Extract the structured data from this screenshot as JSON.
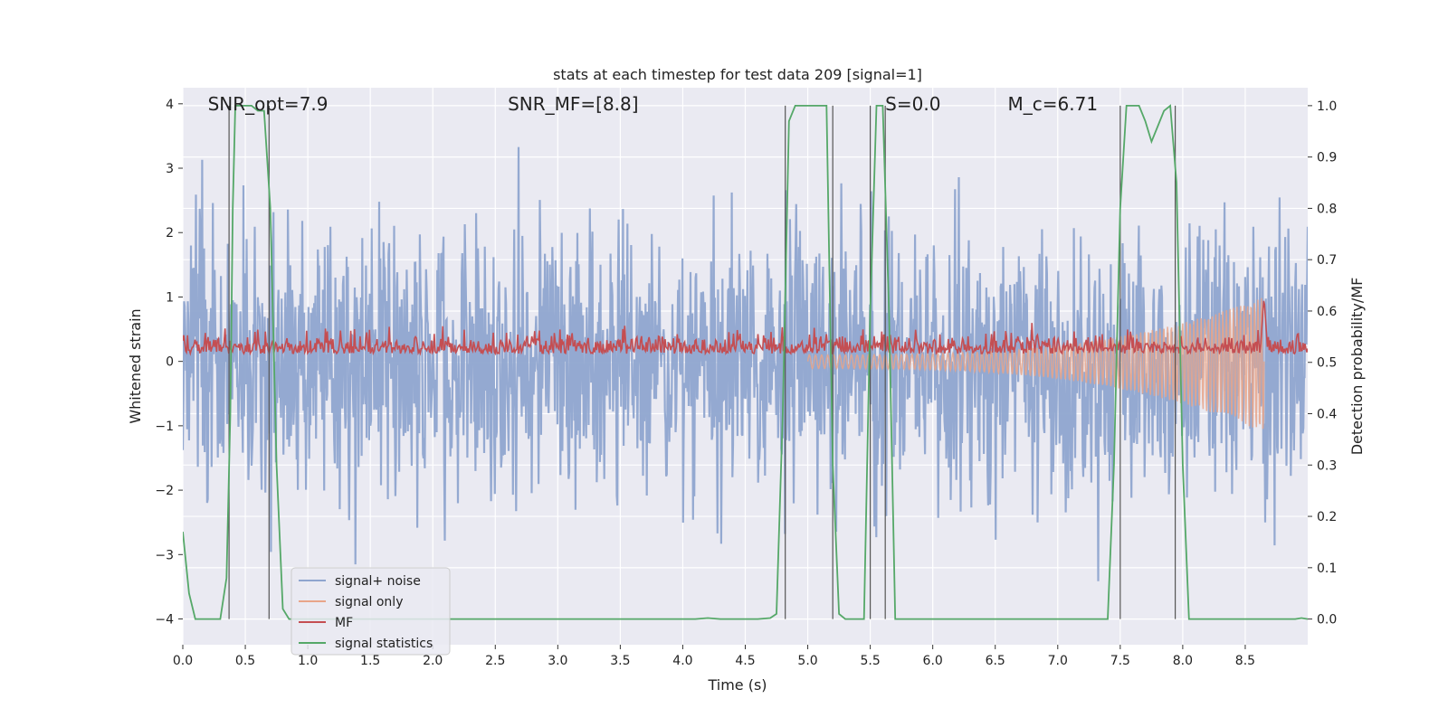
{
  "chart_data": {
    "type": "line",
    "title": "stats at each timestep for test data 209 [signal=1]",
    "xlabel": "Time (s)",
    "ylabel": "Whitened strain",
    "ylabel_right": "Detection probability/MF",
    "xlim": [
      0.0,
      9.0
    ],
    "ylim": [
      -4.4,
      4.25
    ],
    "ylim_right": [
      -0.05,
      1.035
    ],
    "grid": true,
    "legend_position": "lower-left",
    "x_ticks": [
      "0.0",
      "0.5",
      "1.0",
      "1.5",
      "2.0",
      "2.5",
      "3.0",
      "3.5",
      "4.0",
      "4.5",
      "5.0",
      "5.5",
      "6.0",
      "6.5",
      "7.0",
      "7.5",
      "8.0",
      "8.5"
    ],
    "y_ticks": [
      "−4",
      "−3",
      "−2",
      "−1",
      "0",
      "1",
      "2",
      "3",
      "4"
    ],
    "y_ticks_right": [
      "0.0",
      "0.1",
      "0.2",
      "0.3",
      "0.4",
      "0.5",
      "0.6",
      "0.7",
      "0.8",
      "0.9",
      "1.0"
    ],
    "annotations": [
      {
        "text": "SNR_opt=7.9",
        "x": 0.2,
        "y": 4.0
      },
      {
        "text": "SNR_MF=[8.8]",
        "x": 2.6,
        "y": 4.0
      },
      {
        "text": "S=0.0",
        "x": 5.62,
        "y": 4.0
      },
      {
        "text": "M_c=6.71",
        "x": 6.6,
        "y": 4.0
      }
    ],
    "series": [
      {
        "name": "signal+ noise",
        "color": "#8fa5cf",
        "note_visual": "dense noise band, amplitude roughly ±2 with peaks to ±3.6",
        "envelope_abs": 2.2
      },
      {
        "name": "signal only",
        "color": "#e8a589",
        "chirp": {
          "start_x": 5.0,
          "end_x": 8.65,
          "end_amp_upper": 1.0,
          "end_amp_lower": -1.1
        }
      },
      {
        "name": "MF",
        "color": "#c44e52",
        "axis": "right",
        "baseline": 0.52,
        "spike": {
          "x": 8.65,
          "y": 0.63
        }
      },
      {
        "name": "signal statistics",
        "color": "#55a868",
        "axis": "right",
        "x": [
          0.0,
          0.05,
          0.1,
          0.15,
          0.2,
          0.25,
          0.3,
          0.35,
          0.38,
          0.4,
          0.42,
          0.45,
          0.5,
          0.55,
          0.6,
          0.65,
          0.7,
          0.75,
          0.8,
          0.85,
          0.9,
          0.95,
          1.0,
          4.1,
          4.2,
          4.3,
          4.6,
          4.7,
          4.75,
          4.8,
          4.85,
          4.9,
          4.95,
          5.0,
          5.05,
          5.1,
          5.15,
          5.2,
          5.25,
          5.3,
          5.35,
          5.4,
          5.45,
          5.5,
          5.55,
          5.6,
          5.65,
          5.7,
          5.75,
          7.35,
          7.4,
          7.45,
          7.5,
          7.55,
          7.6,
          7.65,
          7.7,
          7.75,
          7.8,
          7.85,
          7.9,
          7.95,
          8.0,
          8.05,
          8.1,
          8.2,
          8.9,
          8.95,
          9.0
        ],
        "y": [
          0.17,
          0.05,
          0.0,
          0.0,
          0.0,
          0.0,
          0.0,
          0.08,
          0.4,
          0.8,
          1.0,
          1.0,
          1.0,
          1.0,
          0.99,
          0.99,
          0.8,
          0.3,
          0.02,
          0.0,
          0.0,
          0.0,
          0.0,
          0.0,
          0.002,
          0.0,
          0.0,
          0.002,
          0.01,
          0.4,
          0.97,
          1.0,
          1.0,
          1.0,
          1.0,
          1.0,
          1.0,
          0.3,
          0.01,
          0.0,
          0.0,
          0.0,
          0.0,
          0.6,
          1.0,
          1.0,
          0.6,
          0.0,
          0.0,
          0.0,
          0.0,
          0.3,
          0.8,
          1.0,
          1.0,
          1.0,
          0.97,
          0.93,
          0.96,
          0.99,
          1.0,
          0.85,
          0.3,
          0.0,
          0.0,
          0.0,
          0.0,
          0.002,
          0.0
        ]
      }
    ],
    "vertical_lines_x": [
      0.37,
      0.69,
      4.82,
      5.2,
      5.5,
      5.62,
      7.5,
      7.94
    ]
  },
  "legend": {
    "items": [
      {
        "label": "signal+ noise",
        "color": "#8fa5cf"
      },
      {
        "label": "signal only",
        "color": "#e8a589"
      },
      {
        "label": "MF",
        "color": "#c44e52"
      },
      {
        "label": "signal statistics",
        "color": "#55a868"
      }
    ]
  }
}
